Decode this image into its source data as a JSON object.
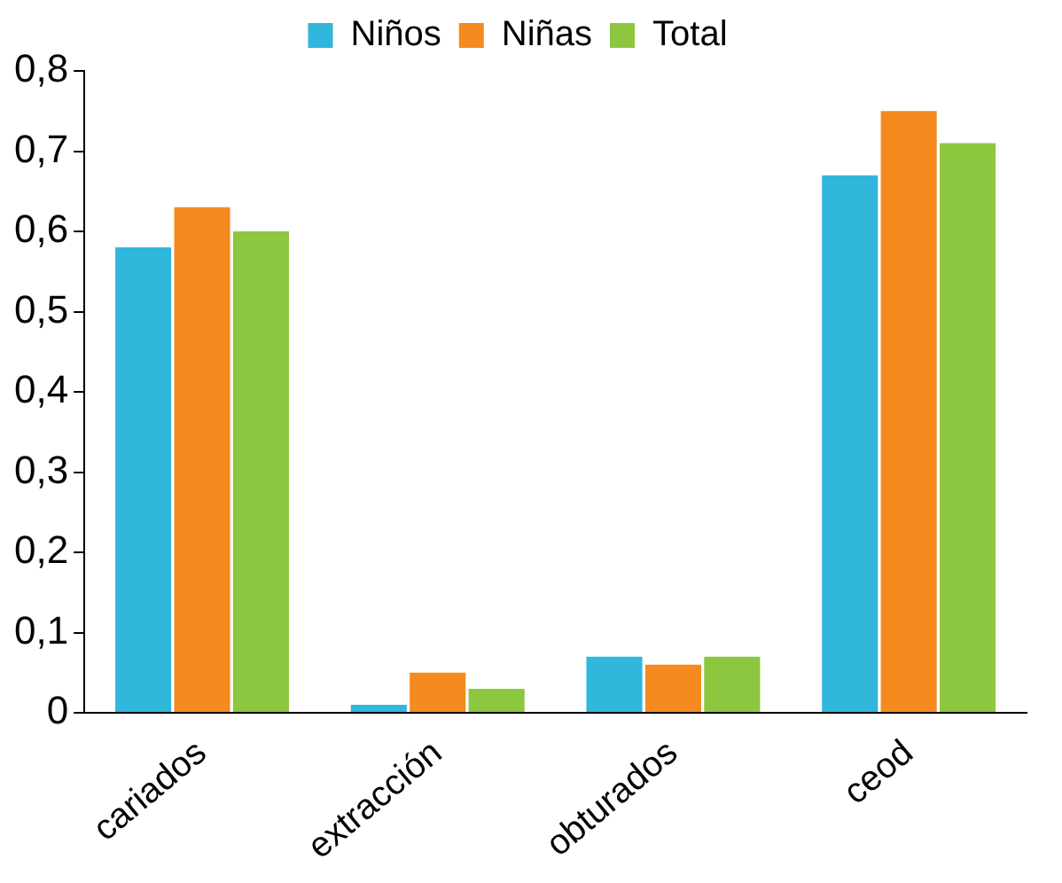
{
  "chart_data": {
    "type": "bar",
    "categories": [
      "cariados",
      "extracción",
      "obturados",
      "ceod"
    ],
    "series": [
      {
        "name": "Niños",
        "color": "#31b6dc",
        "values": [
          0.58,
          0.01,
          0.07,
          0.67
        ]
      },
      {
        "name": "Niñas",
        "color": "#f58a1f",
        "values": [
          0.63,
          0.05,
          0.06,
          0.75
        ]
      },
      {
        "name": "Total",
        "color": "#8dc63f",
        "values": [
          0.6,
          0.03,
          0.07,
          0.71
        ]
      }
    ],
    "ylim": [
      0,
      0.8
    ],
    "yticks": [
      0,
      {
        "value": 0.1,
        "label": "0,1"
      },
      {
        "value": 0.2,
        "label": "0,2"
      },
      {
        "value": 0.3,
        "label": "0,3"
      },
      {
        "value": 0.4,
        "label": "0,4"
      },
      {
        "value": 0.5,
        "label": "0,5"
      },
      {
        "value": 0.6,
        "label": "0,6"
      },
      {
        "value": 0.7,
        "label": "0,7"
      },
      {
        "value": 0.8,
        "label": "0,8"
      }
    ],
    "grid": false,
    "legend": "top"
  }
}
